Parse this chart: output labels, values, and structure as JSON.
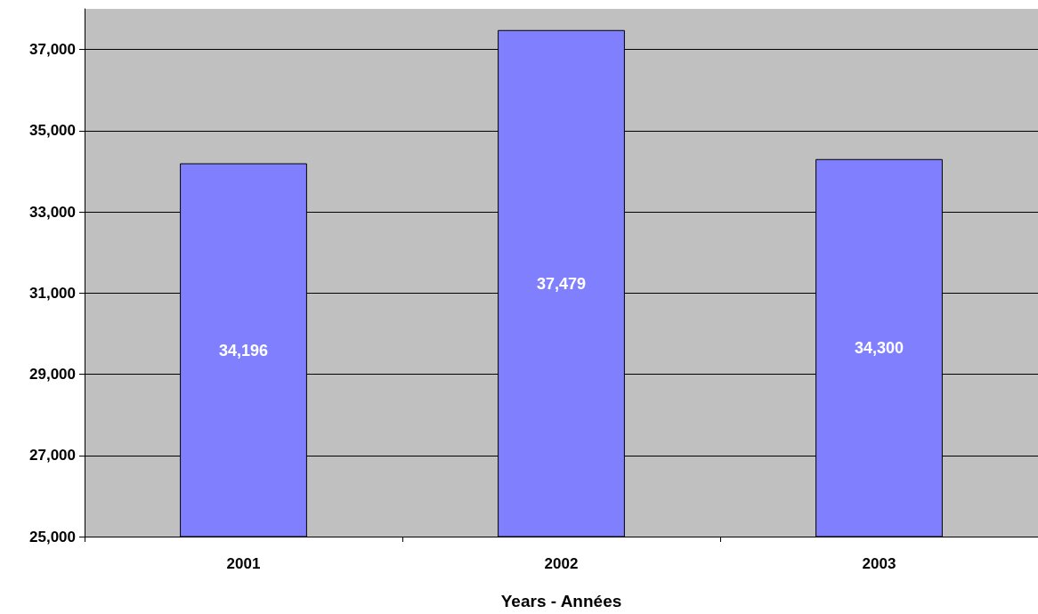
{
  "chart_data": {
    "type": "bar",
    "xlabel": "Years - Années",
    "categories": [
      "2001",
      "2002",
      "2003"
    ],
    "values": [
      34196,
      37479,
      34300
    ],
    "value_labels": [
      "34,196",
      "37,479",
      "34,300"
    ],
    "color": "#8080ff",
    "ylim": [
      25000,
      38000
    ],
    "yticks": [
      {
        "value": 25000,
        "label": "25,000"
      },
      {
        "value": 27000,
        "label": "27,000"
      },
      {
        "value": 29000,
        "label": "29,000"
      },
      {
        "value": 31000,
        "label": "31,000"
      },
      {
        "value": 33000,
        "label": "33,000"
      },
      {
        "value": 35000,
        "label": "35,000"
      },
      {
        "value": 37000,
        "label": "37,000"
      }
    ],
    "grid": "y"
  }
}
